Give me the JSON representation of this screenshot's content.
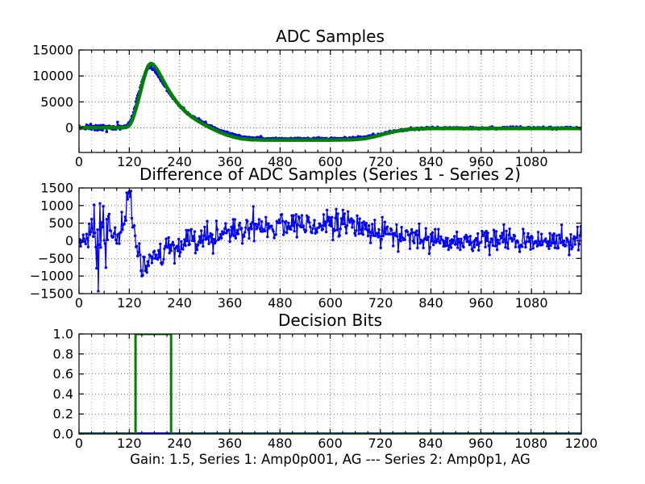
{
  "figure": {
    "xlabel": "Gain: 1.5, Series 1: Amp0p001, AG --- Series 2: Amp0p1, AG",
    "background": "#ffffff",
    "colors": {
      "series1_blue": "#0000ff",
      "series2_green": "#008000",
      "axis": "#000000",
      "grid_major": "#6e6e6e",
      "grid_minor": "#b5b5b5"
    }
  },
  "chart_data": [
    {
      "type": "line",
      "title": "ADC Samples",
      "xlim": [
        0,
        1199
      ],
      "ylim": [
        -4750,
        15000
      ],
      "xticks": [
        0,
        120,
        240,
        360,
        480,
        600,
        720,
        840,
        960,
        1080
      ],
      "xtick_labels": [
        "0",
        "120",
        "240",
        "360",
        "480",
        "600",
        "720",
        "840",
        "960",
        "1080"
      ],
      "yticks": [
        15000,
        10000,
        5000,
        0
      ],
      "ytick_labels": [
        "15000",
        "10000",
        "5000",
        "0"
      ],
      "x_minor_step": 30,
      "grid": true,
      "series": [
        {
          "name": "series-1-adc",
          "type": "noisy-line",
          "color": "#0000ff",
          "seed": 7,
          "step": 2,
          "line_width": 1.4,
          "marker_size": 3.6,
          "noise_sd": [
            [
              0,
              18,
              150
            ],
            [
              18,
              100,
              360
            ],
            [
              100,
              310,
              140
            ],
            [
              310,
              655,
              115
            ],
            [
              655,
              1200,
              115
            ]
          ],
          "keypoints": [
            [
              0,
              0
            ],
            [
              80,
              0
            ],
            [
              103,
              30
            ],
            [
              110,
              150
            ],
            [
              116,
              550
            ],
            [
              122,
              1300
            ],
            [
              128,
              2600
            ],
            [
              134,
              4200
            ],
            [
              140,
              6000
            ],
            [
              146,
              7800
            ],
            [
              152,
              9400
            ],
            [
              158,
              10700
            ],
            [
              163,
              11400
            ],
            [
              168,
              11700
            ],
            [
              173,
              11600
            ],
            [
              178,
              11250
            ],
            [
              184,
              10650
            ],
            [
              191,
              9800
            ],
            [
              199,
              8750
            ],
            [
              208,
              7600
            ],
            [
              218,
              6450
            ],
            [
              229,
              5300
            ],
            [
              241,
              4250
            ],
            [
              254,
              3250
            ],
            [
              268,
              2400
            ],
            [
              283,
              1600
            ],
            [
              299,
              900
            ],
            [
              316,
              250
            ],
            [
              334,
              -350
            ],
            [
              352,
              -900
            ],
            [
              371,
              -1350
            ],
            [
              392,
              -1700
            ],
            [
              415,
              -1950
            ],
            [
              445,
              -2070
            ],
            [
              490,
              -2110
            ],
            [
              560,
              -2110
            ],
            [
              620,
              -2090
            ],
            [
              655,
              -2020
            ],
            [
              682,
              -1830
            ],
            [
              706,
              -1480
            ],
            [
              730,
              -1060
            ],
            [
              754,
              -670
            ],
            [
              778,
              -380
            ],
            [
              802,
              -190
            ],
            [
              830,
              -90
            ],
            [
              870,
              -50
            ],
            [
              950,
              -40
            ],
            [
              1050,
              -40
            ],
            [
              1199,
              -40
            ]
          ]
        },
        {
          "name": "series-2-adc",
          "type": "smooth-line",
          "color": "#008000",
          "step": 3,
          "line_width": 4.5,
          "keypoints": [
            [
              0,
              30
            ],
            [
              80,
              30
            ],
            [
              105,
              30
            ],
            [
              112,
              80
            ],
            [
              118,
              300
            ],
            [
              124,
              900
            ],
            [
              130,
              2100
            ],
            [
              136,
              3700
            ],
            [
              142,
              5500
            ],
            [
              148,
              7400
            ],
            [
              154,
              9300
            ],
            [
              160,
              10900
            ],
            [
              165,
              11900
            ],
            [
              170,
              12400
            ],
            [
              175,
              12350
            ],
            [
              180,
              11950
            ],
            [
              186,
              11300
            ],
            [
              193,
              10300
            ],
            [
              201,
              9100
            ],
            [
              210,
              7800
            ],
            [
              220,
              6500
            ],
            [
              231,
              5200
            ],
            [
              243,
              4000
            ],
            [
              256,
              2950
            ],
            [
              270,
              2050
            ],
            [
              285,
              1250
            ],
            [
              300,
              550
            ],
            [
              316,
              -100
            ],
            [
              333,
              -750
            ],
            [
              350,
              -1300
            ],
            [
              368,
              -1750
            ],
            [
              388,
              -2100
            ],
            [
              410,
              -2280
            ],
            [
              440,
              -2350
            ],
            [
              480,
              -2360
            ],
            [
              540,
              -2360
            ],
            [
              600,
              -2350
            ],
            [
              640,
              -2320
            ],
            [
              665,
              -2230
            ],
            [
              688,
              -2000
            ],
            [
              710,
              -1600
            ],
            [
              732,
              -1130
            ],
            [
              754,
              -700
            ],
            [
              776,
              -390
            ],
            [
              800,
              -210
            ],
            [
              830,
              -130
            ],
            [
              870,
              -110
            ],
            [
              950,
              -110
            ],
            [
              1050,
              -110
            ],
            [
              1199,
              -110
            ]
          ]
        }
      ]
    },
    {
      "type": "line",
      "title": "Difference of ADC Samples (Series 1 - Series 2)",
      "xlim": [
        0,
        1199
      ],
      "ylim": [
        -1500,
        1500
      ],
      "xticks": [
        0,
        120,
        240,
        360,
        480,
        600,
        720,
        840,
        960,
        1080
      ],
      "xtick_labels": [
        "0",
        "120",
        "240",
        "360",
        "480",
        "600",
        "720",
        "840",
        "960",
        "1080"
      ],
      "yticks": [
        1500,
        1000,
        500,
        0,
        -500,
        -1000,
        -1500
      ],
      "ytick_labels": [
        "1500",
        "1000",
        "500",
        "0",
        "-500",
        "-1000",
        "-1500"
      ],
      "x_minor_step": 30,
      "grid": true,
      "series": [
        {
          "name": "difference-series",
          "type": "noisy-line",
          "color": "#0000ff",
          "seed": 12345,
          "step": 2,
          "line_width": 1.3,
          "marker_size": 3.4,
          "noise_sd": [
            [
              0,
              18,
              170
            ],
            [
              18,
              80,
              430
            ],
            [
              80,
              95,
              260
            ],
            [
              95,
              132,
              260
            ],
            [
              132,
              230,
              185
            ],
            [
              230,
              650,
              205
            ],
            [
              650,
              1200,
              170
            ]
          ],
          "outliers": [
            [
              35,
              1020
            ],
            [
              42,
              -780
            ],
            [
              45,
              -1430
            ],
            [
              50,
              1060
            ],
            [
              58,
              980
            ],
            [
              64,
              -760
            ],
            [
              72,
              760
            ],
            [
              116,
              1180
            ],
            [
              119,
              1400
            ],
            [
              122,
              1250
            ],
            [
              150,
              -1000
            ]
          ],
          "keypoints": [
            [
              0,
              -50
            ],
            [
              25,
              0
            ],
            [
              50,
              -80
            ],
            [
              70,
              30
            ],
            [
              85,
              80
            ],
            [
              95,
              150
            ],
            [
              103,
              350
            ],
            [
              110,
              650
            ],
            [
              116,
              1000
            ],
            [
              120,
              1250
            ],
            [
              124,
              1050
            ],
            [
              128,
              650
            ],
            [
              132,
              250
            ],
            [
              137,
              -150
            ],
            [
              143,
              -430
            ],
            [
              150,
              -600
            ],
            [
              158,
              -640
            ],
            [
              167,
              -590
            ],
            [
              177,
              -500
            ],
            [
              190,
              -430
            ],
            [
              205,
              -360
            ],
            [
              222,
              -280
            ],
            [
              240,
              -200
            ],
            [
              260,
              -120
            ],
            [
              282,
              -40
            ],
            [
              305,
              60
            ],
            [
              330,
              160
            ],
            [
              356,
              250
            ],
            [
              382,
              320
            ],
            [
              408,
              370
            ],
            [
              434,
              410
            ],
            [
              462,
              440
            ],
            [
              495,
              455
            ],
            [
              530,
              465
            ],
            [
              565,
              470
            ],
            [
              600,
              465
            ],
            [
              630,
              450
            ],
            [
              658,
              410
            ],
            [
              686,
              340
            ],
            [
              712,
              265
            ],
            [
              738,
              190
            ],
            [
              764,
              120
            ],
            [
              790,
              70
            ],
            [
              820,
              30
            ],
            [
              855,
              5
            ],
            [
              895,
              -10
            ],
            [
              940,
              -15
            ],
            [
              990,
              -5
            ],
            [
              1040,
              0
            ],
            [
              1090,
              5
            ],
            [
              1145,
              0
            ],
            [
              1199,
              0
            ]
          ]
        }
      ]
    },
    {
      "type": "line",
      "title": "Decision Bits",
      "xlim": [
        0,
        1200
      ],
      "ylim": [
        0,
        1
      ],
      "xticks": [
        0,
        120,
        240,
        360,
        480,
        600,
        720,
        840,
        960,
        1080,
        1200
      ],
      "xtick_labels": [
        "0",
        "120",
        "240",
        "360",
        "480",
        "600",
        "720",
        "840",
        "960",
        "1080",
        "1200"
      ],
      "yticks": [
        1.0,
        0.8,
        0.6,
        0.4,
        0.2,
        0.0
      ],
      "ytick_labels": [
        "1.0",
        "0.8",
        "0.6",
        "0.4",
        "0.2",
        "0.0"
      ],
      "x_minor_step": 30,
      "grid": true,
      "series": [
        {
          "name": "decision-bits-series-1",
          "type": "step-line",
          "color": "#0000ff",
          "line_width": 4,
          "steps": [
            [
              0,
              0
            ]
          ],
          "xend": 1200
        },
        {
          "name": "decision-bits-series-2",
          "type": "step-line",
          "color": "#008000",
          "line_width": 3,
          "steps": [
            [
              0,
              0
            ],
            [
              135,
              1
            ],
            [
              220,
              0
            ]
          ],
          "xend": 1200
        }
      ]
    }
  ]
}
